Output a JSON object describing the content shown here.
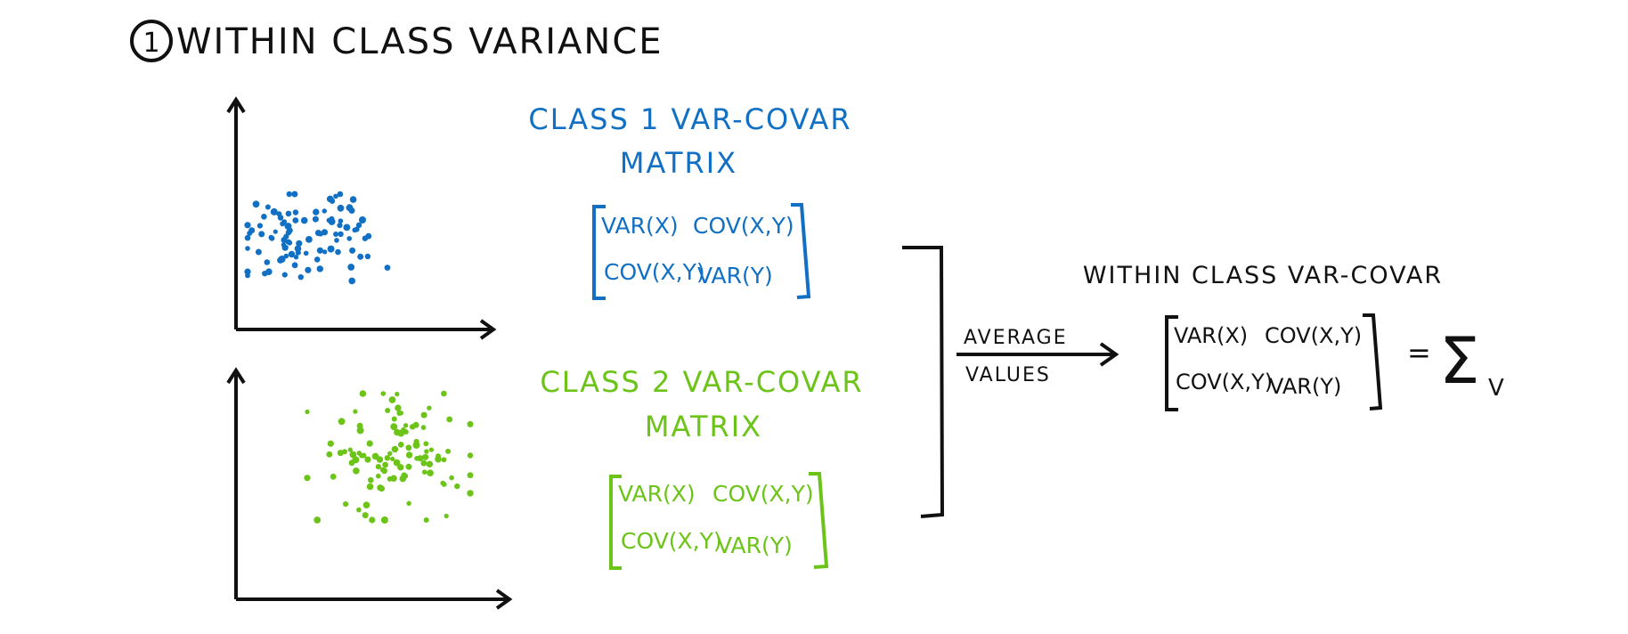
{
  "title": {
    "number": "1",
    "text": "WITHIN CLASS VARIANCE"
  },
  "colors": {
    "ink": "#111111",
    "class1": "#1170c4",
    "class2": "#6cc418"
  },
  "class1": {
    "heading_line1": "CLASS 1 VAR-COVAR",
    "heading_line2": "MATRIX",
    "matrix": {
      "r1c1": "VAR(X)",
      "r1c2": "COV(X,Y)",
      "r2c1": "COV(X,Y)",
      "r2c2": "VAR(Y)"
    }
  },
  "class2": {
    "heading_line1": "CLASS 2 VAR-COVAR",
    "heading_line2": "MATRIX",
    "matrix": {
      "r1c1": "VAR(X)",
      "r1c2": "COV(X,Y)",
      "r2c1": "COV(X,Y)",
      "r2c2": "VAR(Y)"
    }
  },
  "arrow": {
    "top_label": "AVERAGE",
    "bottom_label": "VALUES"
  },
  "result": {
    "heading": "WITHIN CLASS VAR-COVAR",
    "matrix": {
      "r1c1": "VAR(X)",
      "r1c2": "COV(X,Y)",
      "r2c1": "COV(X,Y)",
      "r2c2": "VAR(Y)"
    },
    "equals": "=",
    "symbol": "Σ",
    "subscript": "V"
  }
}
